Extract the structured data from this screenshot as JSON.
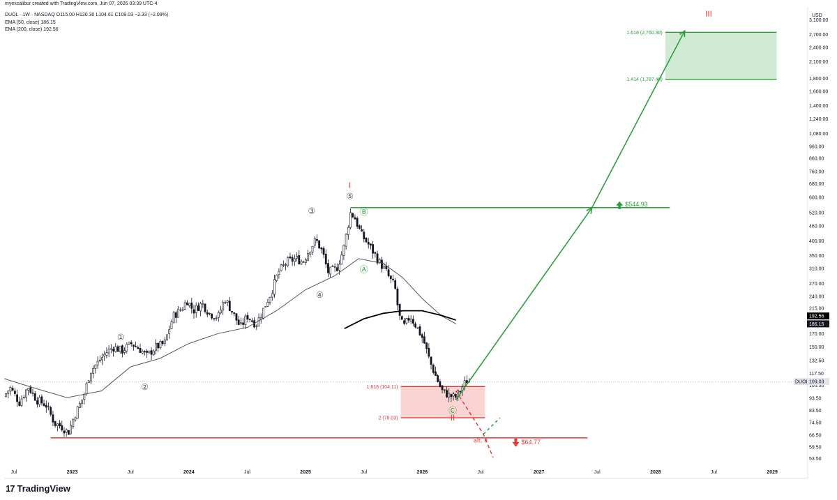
{
  "header": {
    "attribution": "myexcalibur created with TradingView.com, Jun 07, 2026 03:39 UTC-4",
    "symbol_line": "DUOL · 1W · NASDAQ  O115.00  H120.30  L104.61  C109.03  −2.33 (−2.09%)",
    "ema50": "EMA (50, close)  186.15",
    "ema200": "EMA (200, close)  192.56"
  },
  "footer": {
    "logo_mark": "17",
    "logo_text": "TradingView"
  },
  "chart_data": {
    "type": "candlestick",
    "y_scale": "log",
    "currency": "USD",
    "ylim": [
      50,
      3400
    ],
    "xlim": [
      "2022-06",
      "2029-03"
    ],
    "y_ticks": [
      3100,
      2700,
      2400,
      2100,
      1800,
      1600,
      1400,
      1240,
      1080,
      960,
      860,
      760,
      680,
      600,
      520,
      460,
      400,
      350,
      310,
      270,
      240,
      215,
      170,
      150,
      132.5,
      117.5,
      105.5,
      93.5,
      83.5,
      74.5,
      66.5,
      59.5,
      53.5
    ],
    "y_tick_labels": [
      "3,100.00",
      "2,700.00",
      "2,400.00",
      "2,100.00",
      "1,800.00",
      "1,600.00",
      "1,400.00",
      "1,240.00",
      "1,080.00",
      "960.00",
      "860.00",
      "760.00",
      "680.00",
      "600.00",
      "520.00",
      "460.00",
      "400.00",
      "350.00",
      "310.00",
      "270.00",
      "240.00",
      "215.00",
      "170.00",
      "150.00",
      "132.50",
      "117.50",
      "105.50",
      "93.50",
      "83.50",
      "74.50",
      "66.50",
      "59.50",
      "53.50"
    ],
    "x_ticks": [
      {
        "date": "2022-07",
        "label": "Jul"
      },
      {
        "date": "2023-01",
        "label": "2023"
      },
      {
        "date": "2023-07",
        "label": "Jul"
      },
      {
        "date": "2024-01",
        "label": "2024"
      },
      {
        "date": "2024-07",
        "label": "Jul"
      },
      {
        "date": "2025-01",
        "label": "2025"
      },
      {
        "date": "2025-07",
        "label": "Jul"
      },
      {
        "date": "2026-01",
        "label": "2026"
      },
      {
        "date": "2026-07",
        "label": "Jul"
      },
      {
        "date": "2027-01",
        "label": "2027"
      },
      {
        "date": "2027-07",
        "label": "Jul"
      },
      {
        "date": "2028-01",
        "label": "2028"
      },
      {
        "date": "2028-07",
        "label": "Jul"
      },
      {
        "date": "2029-01",
        "label": "2029"
      }
    ],
    "price_path": [
      [
        "2022-05-30",
        95
      ],
      [
        "2022-06-20",
        103
      ],
      [
        "2022-07-18",
        90
      ],
      [
        "2022-08-15",
        104
      ],
      [
        "2022-09-12",
        92
      ],
      [
        "2022-10-10",
        88
      ],
      [
        "2022-11-07",
        74
      ],
      [
        "2022-11-28",
        72
      ],
      [
        "2022-12-19",
        68
      ],
      [
        "2023-01-09",
        80
      ],
      [
        "2023-02-06",
        95
      ],
      [
        "2023-02-27",
        120
      ],
      [
        "2023-03-20",
        130
      ],
      [
        "2023-04-17",
        143
      ],
      [
        "2023-05-08",
        150
      ],
      [
        "2023-06-05",
        145
      ],
      [
        "2023-07-03",
        155
      ],
      [
        "2023-07-31",
        147
      ],
      [
        "2023-08-21",
        138
      ],
      [
        "2023-09-18",
        150
      ],
      [
        "2023-10-16",
        155
      ],
      [
        "2023-11-13",
        200
      ],
      [
        "2023-12-11",
        215
      ],
      [
        "2023-12-25",
        232
      ],
      [
        "2024-01-15",
        210
      ],
      [
        "2024-02-12",
        225
      ],
      [
        "2024-03-04",
        205
      ],
      [
        "2024-04-01",
        198
      ],
      [
        "2024-04-22",
        235
      ],
      [
        "2024-05-13",
        210
      ],
      [
        "2024-06-10",
        180
      ],
      [
        "2024-07-01",
        200
      ],
      [
        "2024-07-29",
        185
      ],
      [
        "2024-08-19",
        210
      ],
      [
        "2024-09-16",
        250
      ],
      [
        "2024-10-07",
        300
      ],
      [
        "2024-11-04",
        330
      ],
      [
        "2024-12-02",
        340
      ],
      [
        "2024-12-23",
        330
      ],
      [
        "2025-01-13",
        370
      ],
      [
        "2025-02-03",
        405
      ],
      [
        "2025-02-24",
        360
      ],
      [
        "2025-03-10",
        300
      ],
      [
        "2025-03-24",
        305
      ],
      [
        "2025-04-07",
        310
      ],
      [
        "2025-04-28",
        370
      ],
      [
        "2025-05-12",
        460
      ],
      [
        "2025-05-19",
        520
      ],
      [
        "2025-06-02",
        500
      ],
      [
        "2025-06-23",
        425
      ],
      [
        "2025-07-14",
        390
      ],
      [
        "2025-08-04",
        355
      ],
      [
        "2025-08-18",
        330
      ],
      [
        "2025-09-08",
        305
      ],
      [
        "2025-09-22",
        280
      ],
      [
        "2025-10-06",
        265
      ],
      [
        "2025-10-20",
        200
      ],
      [
        "2025-11-03",
        180
      ],
      [
        "2025-11-24",
        200
      ],
      [
        "2025-12-15",
        180
      ],
      [
        "2026-01-05",
        160
      ],
      [
        "2026-01-26",
        130
      ],
      [
        "2026-02-16",
        112
      ],
      [
        "2026-03-02",
        100
      ],
      [
        "2026-03-23",
        96
      ],
      [
        "2026-04-13",
        94
      ],
      [
        "2026-04-27",
        100
      ],
      [
        "2026-05-18",
        110
      ],
      [
        "2026-06-01",
        109.03
      ]
    ],
    "ema_50_path": [
      [
        "2022-06-01",
        112
      ],
      [
        "2022-09-01",
        103
      ],
      [
        "2022-12-15",
        94
      ],
      [
        "2023-04-01",
        100
      ],
      [
        "2023-07-01",
        125
      ],
      [
        "2023-10-01",
        135
      ],
      [
        "2024-01-01",
        155
      ],
      [
        "2024-04-01",
        170
      ],
      [
        "2024-07-01",
        180
      ],
      [
        "2024-10-01",
        210
      ],
      [
        "2025-01-01",
        255
      ],
      [
        "2025-04-01",
        290
      ],
      [
        "2025-06-15",
        340
      ],
      [
        "2025-09-01",
        325
      ],
      [
        "2025-11-01",
        285
      ],
      [
        "2026-01-01",
        235
      ],
      [
        "2026-03-01",
        200
      ],
      [
        "2026-04-15",
        186.15
      ]
    ],
    "ema_200_path": [
      [
        "2025-05-01",
        178
      ],
      [
        "2025-07-01",
        195
      ],
      [
        "2025-09-01",
        205
      ],
      [
        "2025-11-01",
        210
      ],
      [
        "2026-01-01",
        210
      ],
      [
        "2026-03-01",
        201
      ],
      [
        "2026-04-15",
        192.56
      ]
    ],
    "last_price": {
      "label": "DUOL",
      "value": "109.03"
    },
    "ema_badges": [
      {
        "value": "192.56",
        "color": "#000000"
      },
      {
        "value": "186.15",
        "color": "#131722"
      }
    ],
    "levels": [
      {
        "name": "target",
        "label": "$544.93",
        "value": 544.93,
        "color": "#2e9e3b"
      },
      {
        "name": "support",
        "label": "$64.77",
        "value": 64.77,
        "color": "#e53935"
      }
    ],
    "zones": [
      {
        "name": "target-zone",
        "top_label": "1.618 (2,760.38)",
        "bottom_label": "1.414 (1,787.40)",
        "top": 2760.38,
        "bottom": 1787.4,
        "color": "#2e9e3b"
      },
      {
        "name": "buy-zone",
        "top_label": "1.618 (104.11)",
        "bottom_label": "2 (78.03)",
        "top": 104.11,
        "bottom": 78.03,
        "color": "#e53935"
      }
    ],
    "projection_main": [
      [
        "2026-04-15",
        92
      ],
      [
        "2027-06-15",
        544.93
      ],
      [
        "2028-04-01",
        2800
      ]
    ],
    "projection_alt": [
      [
        "2026-04-15",
        100
      ],
      [
        "2026-07-10",
        67
      ],
      [
        "2026-08-10",
        54
      ]
    ],
    "projection_alt_green": [
      [
        "2026-07-10",
        67
      ],
      [
        "2026-09-01",
        78
      ]
    ],
    "wave_labels": [
      {
        "text": "①",
        "date": "2023-06-01",
        "price": 160
      },
      {
        "text": "②",
        "date": "2023-08-15",
        "price": 101
      },
      {
        "text": "③",
        "date": "2025-01-20",
        "price": 515
      },
      {
        "text": "④",
        "date": "2025-02-15",
        "price": 237
      },
      {
        "text": "⑤",
        "date": "2025-05-18",
        "price": 590
      },
      {
        "text": "Ⓐ",
        "date": "2025-07-01",
        "price": 300
      },
      {
        "text": "Ⓑ",
        "date": "2025-07-01",
        "price": 510
      },
      {
        "text": "Ⓒ",
        "date": "2026-04-05",
        "price": 81
      },
      {
        "text": "I",
        "date": "2025-05-18",
        "price": 655
      },
      {
        "text": "II",
        "date": "2026-04-05",
        "price": 76
      },
      {
        "text": "III",
        "date": "2028-06-15",
        "price": 3200
      },
      {
        "text": "alt. II",
        "date": "2026-07-01",
        "price": 62
      }
    ],
    "colors": {
      "up": "#26a69a",
      "down": "#ef5350",
      "green": "#2e9e3b",
      "red": "#e53935",
      "candle": "#131722"
    }
  }
}
